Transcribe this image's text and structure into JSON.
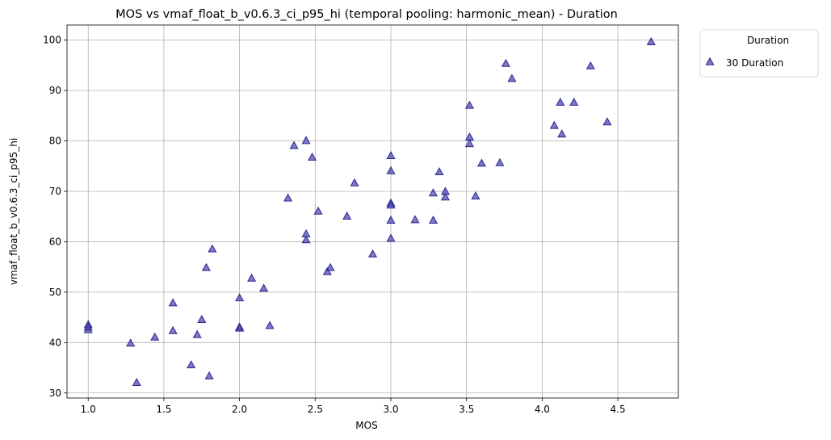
{
  "chart_data": {
    "type": "scatter",
    "title": "MOS vs vmaf_float_b_v0.6.3_ci_p95_hi (temporal pooling: harmonic_mean) - Duration",
    "xlabel": "MOS",
    "ylabel": "vmaf_float_b_v0.6.3_ci_p95_hi",
    "xlim": [
      0.86,
      4.9
    ],
    "ylim": [
      29,
      103
    ],
    "xticks": [
      1.0,
      1.5,
      2.0,
      2.5,
      3.0,
      3.5,
      4.0,
      4.5
    ],
    "xtick_labels": [
      "1.0",
      "1.5",
      "2.0",
      "2.5",
      "3.0",
      "3.5",
      "4.0",
      "4.5"
    ],
    "yticks": [
      30,
      40,
      50,
      60,
      70,
      80,
      90,
      100
    ],
    "ytick_labels": [
      "30",
      "40",
      "50",
      "60",
      "70",
      "80",
      "90",
      "100"
    ],
    "grid": true,
    "legend": {
      "title": "Duration",
      "placement": "outside-top-right"
    },
    "marker": "triangle-up",
    "series": [
      {
        "name": "30 Duration",
        "color": "#4b45b0",
        "edge_color": "#2b2790",
        "points": [
          [
            1.0,
            43.5
          ],
          [
            1.0,
            42.5
          ],
          [
            1.0,
            43.0
          ],
          [
            1.28,
            39.8
          ],
          [
            1.32,
            32.0
          ],
          [
            1.44,
            41.0
          ],
          [
            1.56,
            47.8
          ],
          [
            1.56,
            42.3
          ],
          [
            1.68,
            35.5
          ],
          [
            1.72,
            41.5
          ],
          [
            1.75,
            44.5
          ],
          [
            1.78,
            54.8
          ],
          [
            1.8,
            33.3
          ],
          [
            1.82,
            58.5
          ],
          [
            2.0,
            48.8
          ],
          [
            2.0,
            43.0
          ],
          [
            2.0,
            42.8
          ],
          [
            2.08,
            52.7
          ],
          [
            2.16,
            50.7
          ],
          [
            2.2,
            43.3
          ],
          [
            2.32,
            68.6
          ],
          [
            2.36,
            79.0
          ],
          [
            2.44,
            80.0
          ],
          [
            2.44,
            61.5
          ],
          [
            2.44,
            60.3
          ],
          [
            2.48,
            76.7
          ],
          [
            2.52,
            66.0
          ],
          [
            2.58,
            54.0
          ],
          [
            2.6,
            54.8
          ],
          [
            2.71,
            65.0
          ],
          [
            2.76,
            71.6
          ],
          [
            2.88,
            57.5
          ],
          [
            3.0,
            77.0
          ],
          [
            3.0,
            74.0
          ],
          [
            3.0,
            67.6
          ],
          [
            3.0,
            67.2
          ],
          [
            3.0,
            64.2
          ],
          [
            3.0,
            60.6
          ],
          [
            3.16,
            64.3
          ],
          [
            3.28,
            69.6
          ],
          [
            3.28,
            64.2
          ],
          [
            3.32,
            73.8
          ],
          [
            3.36,
            69.9
          ],
          [
            3.36,
            68.8
          ],
          [
            3.52,
            87.0
          ],
          [
            3.52,
            80.7
          ],
          [
            3.52,
            79.4
          ],
          [
            3.56,
            69.0
          ],
          [
            3.6,
            75.5
          ],
          [
            3.72,
            75.6
          ],
          [
            3.76,
            95.3
          ],
          [
            3.8,
            92.3
          ],
          [
            4.08,
            83.0
          ],
          [
            4.12,
            87.6
          ],
          [
            4.13,
            81.3
          ],
          [
            4.21,
            87.6
          ],
          [
            4.32,
            94.8
          ],
          [
            4.43,
            83.7
          ],
          [
            4.72,
            99.6
          ]
        ]
      }
    ]
  }
}
